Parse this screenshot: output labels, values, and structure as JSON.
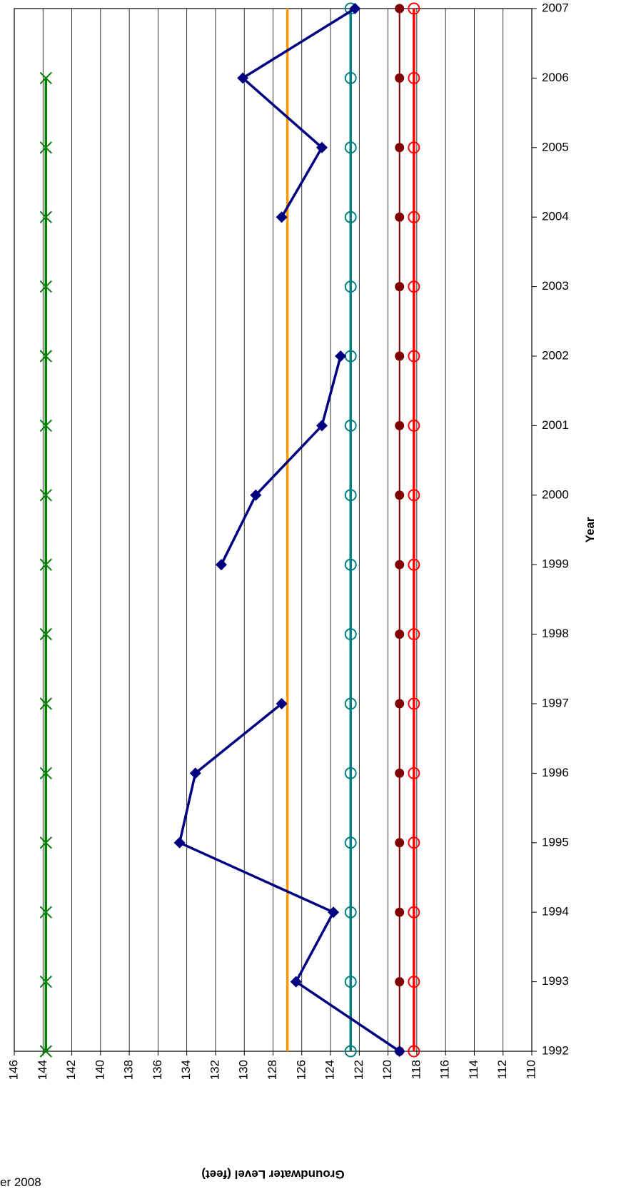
{
  "chart_data": {
    "type": "line",
    "orientation": "rotated-ccw",
    "x_label": "Year",
    "y_label": "Groundwater Level (feet)",
    "note": "er 2008",
    "x": [
      1992,
      1993,
      1994,
      1995,
      1996,
      1997,
      1998,
      1999,
      2000,
      2001,
      2002,
      2003,
      2004,
      2005,
      2006,
      2007
    ],
    "xlim": [
      1992,
      2007
    ],
    "xticks": [
      1992,
      1993,
      1994,
      1995,
      1996,
      1997,
      1998,
      1999,
      2000,
      2001,
      2002,
      2003,
      2004,
      2005,
      2006,
      2007
    ],
    "ylim": [
      110,
      146
    ],
    "yticks": [
      110,
      112,
      114,
      116,
      118,
      120,
      122,
      124,
      126,
      128,
      130,
      132,
      134,
      136,
      138,
      140,
      142,
      144,
      146
    ],
    "grid": true,
    "series": [
      {
        "color": "#008000",
        "marker": "x",
        "values": [
          143.8,
          143.8,
          143.8,
          143.8,
          143.8,
          143.8,
          143.8,
          143.8,
          143.8,
          143.8,
          143.8,
          143.8,
          143.8,
          143.8,
          143.8,
          null
        ]
      },
      {
        "color": "#ff9900",
        "marker": "none",
        "values": [
          127,
          127,
          127,
          127,
          127,
          127,
          127,
          127,
          127,
          127,
          127,
          127,
          127,
          127,
          127,
          127
        ]
      },
      {
        "color": "#008080",
        "marker": "open-circle",
        "values": [
          122.6,
          122.6,
          122.6,
          122.6,
          122.6,
          122.6,
          122.6,
          122.6,
          122.6,
          122.6,
          122.6,
          122.6,
          122.6,
          122.6,
          122.6,
          122.6
        ]
      },
      {
        "color": "#800000",
        "marker": "dot",
        "values": [
          119.2,
          119.2,
          119.2,
          119.2,
          119.2,
          119.2,
          119.2,
          119.2,
          119.2,
          119.2,
          119.2,
          119.2,
          119.2,
          119.2,
          119.2,
          119.2
        ]
      },
      {
        "color": "#ff0000",
        "marker": "open-circle",
        "values": [
          118.2,
          118.2,
          118.2,
          118.2,
          118.2,
          118.2,
          118.2,
          118.2,
          118.2,
          118.2,
          118.2,
          118.2,
          118.2,
          118.2,
          118.2,
          118.2
        ]
      },
      {
        "color": "#000080",
        "marker": "diamond",
        "values": [
          119.2,
          126.4,
          123.8,
          134.5,
          133.4,
          127.4,
          null,
          131.6,
          129.2,
          124.6,
          123.3,
          null,
          127.4,
          124.6,
          130.1,
          122.3
        ]
      }
    ]
  }
}
